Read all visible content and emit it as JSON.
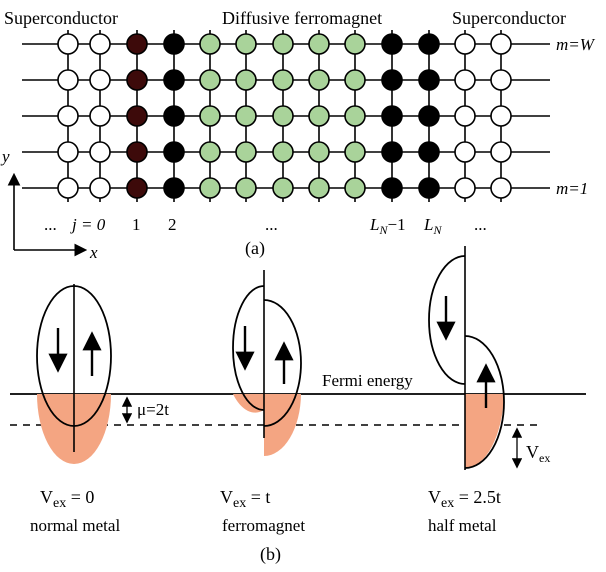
{
  "part_a": {
    "label": "(a)",
    "headers": {
      "left": "Superconductor",
      "middle": "Diffusive ferromagnet",
      "right": "Superconductor"
    },
    "row_labels": {
      "top": "m=W",
      "bottom": "m=1"
    },
    "column_labels": {
      "left_dots": "...",
      "j0": "j = 0",
      "one": "1",
      "two": "2",
      "mid_dots": "...",
      "LN_minus_1": "L",
      "LN_minus_1_sub": "N",
      "LN_minus_1_suffix": "−1",
      "LN": "L",
      "LN_sub": "N",
      "right_dots": "..."
    },
    "axes": {
      "y": "y",
      "x": "x"
    },
    "site_colors": {
      "superconductor": "#ffffff",
      "interface_left": "#3d0a0a",
      "interface": "#000000",
      "ferromagnet": "#a9d39a"
    }
  },
  "part_b": {
    "label": "(b)",
    "fermi_label": "Fermi energy",
    "mu_label": "μ=2t",
    "vex_side_label": "V",
    "vex_side_sub": "ex",
    "fill_color": "#f4a582",
    "panels": [
      {
        "name": "normal-metal",
        "vex_prefix": "V",
        "vex_sub": "ex",
        "vex_value": " = 0",
        "caption": "normal metal"
      },
      {
        "name": "ferromagnet",
        "vex_prefix": "V",
        "vex_sub": "ex",
        "vex_value": " = t",
        "caption": "ferromagnet"
      },
      {
        "name": "half-metal",
        "vex_prefix": "V",
        "vex_sub": "ex",
        "vex_value": " = 2.5t",
        "caption": "half metal"
      }
    ]
  }
}
